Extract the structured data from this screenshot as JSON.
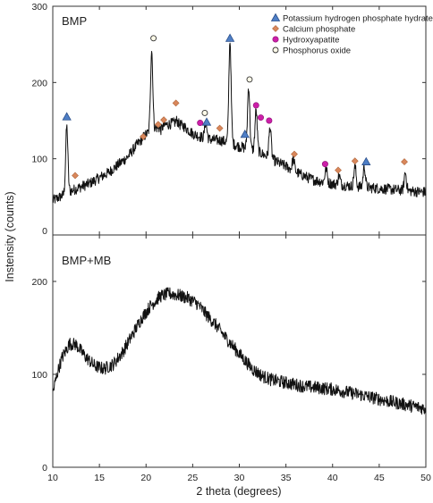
{
  "chart_data": {
    "type": "line",
    "xlabel": "2 theta (degrees)",
    "ylabel": "Instensity (counts)",
    "x_ticks": [
      "10",
      "15",
      "20",
      "25",
      "30",
      "35",
      "40",
      "45",
      "50"
    ],
    "xlim": [
      10,
      50
    ],
    "panels": [
      {
        "label": "BMP",
        "ylim": [
          0,
          300
        ],
        "y_ticks": [
          "0",
          "100",
          "200",
          "300"
        ],
        "series_color": "#111111",
        "baseline": [
          [
            10,
            45
          ],
          [
            12,
            58
          ],
          [
            14,
            68
          ],
          [
            16,
            82
          ],
          [
            18,
            102
          ],
          [
            19,
            118
          ],
          [
            20,
            132
          ],
          [
            21,
            140
          ],
          [
            22,
            144
          ],
          [
            23,
            147
          ],
          [
            24,
            143
          ],
          [
            25,
            133
          ],
          [
            26,
            128
          ],
          [
            27,
            125
          ],
          [
            28,
            124
          ],
          [
            29,
            121
          ],
          [
            30,
            116
          ],
          [
            31,
            113
          ],
          [
            32,
            109
          ],
          [
            33,
            103
          ],
          [
            34,
            96
          ],
          [
            35,
            90
          ],
          [
            36,
            83
          ],
          [
            37,
            77
          ],
          [
            38,
            72
          ],
          [
            40,
            67
          ],
          [
            42,
            64
          ],
          [
            44,
            62
          ],
          [
            46,
            60
          ],
          [
            48,
            58
          ],
          [
            50,
            56
          ]
        ],
        "peaks": [
          [
            11.5,
            142
          ],
          [
            20.6,
            243
          ],
          [
            21.6,
            138
          ],
          [
            23.3,
            150
          ],
          [
            26.4,
            148
          ],
          [
            29.0,
            255
          ],
          [
            31.0,
            195
          ],
          [
            31.8,
            163
          ],
          [
            33.3,
            142
          ],
          [
            35.8,
            100
          ],
          [
            39.3,
            88
          ],
          [
            40.7,
            78
          ],
          [
            42.4,
            90
          ],
          [
            43.4,
            90
          ],
          [
            47.8,
            82
          ]
        ],
        "markers": [
          {
            "kind": "khp",
            "x": 11.5,
            "y": 155
          },
          {
            "kind": "ca",
            "x": 12.4,
            "y": 78
          },
          {
            "kind": "ca",
            "x": 19.7,
            "y": 129
          },
          {
            "kind": "po",
            "x": 20.8,
            "y": 258
          },
          {
            "kind": "ca",
            "x": 21.3,
            "y": 145
          },
          {
            "kind": "ca",
            "x": 21.9,
            "y": 151
          },
          {
            "kind": "ca",
            "x": 23.2,
            "y": 173
          },
          {
            "kind": "hap",
            "x": 25.8,
            "y": 147
          },
          {
            "kind": "po",
            "x": 26.3,
            "y": 160
          },
          {
            "kind": "khp",
            "x": 26.5,
            "y": 148
          },
          {
            "kind": "ca",
            "x": 27.9,
            "y": 140
          },
          {
            "kind": "khp",
            "x": 29.0,
            "y": 258
          },
          {
            "kind": "khp",
            "x": 30.6,
            "y": 132
          },
          {
            "kind": "po",
            "x": 31.1,
            "y": 204
          },
          {
            "kind": "hap",
            "x": 31.8,
            "y": 170
          },
          {
            "kind": "hap",
            "x": 32.3,
            "y": 154
          },
          {
            "kind": "hap",
            "x": 33.2,
            "y": 150
          },
          {
            "kind": "ca",
            "x": 35.9,
            "y": 106
          },
          {
            "kind": "hap",
            "x": 39.2,
            "y": 93
          },
          {
            "kind": "ca",
            "x": 40.6,
            "y": 85
          },
          {
            "kind": "ca",
            "x": 42.4,
            "y": 97
          },
          {
            "kind": "khp",
            "x": 43.6,
            "y": 96
          },
          {
            "kind": "ca",
            "x": 47.7,
            "y": 96
          }
        ]
      },
      {
        "label": "BMP+MB",
        "ylim": [
          0,
          250
        ],
        "y_ticks": [
          "0",
          "100",
          "200"
        ],
        "series_color": "#111111",
        "baseline": [
          [
            10,
            80
          ],
          [
            10.5,
            102
          ],
          [
            11,
            118
          ],
          [
            11.8,
            133
          ],
          [
            12.5,
            132
          ],
          [
            13.5,
            119
          ],
          [
            14.5,
            109
          ],
          [
            15.5,
            106
          ],
          [
            16.5,
            111
          ],
          [
            17.5,
            124
          ],
          [
            18.5,
            142
          ],
          [
            19.5,
            160
          ],
          [
            20.5,
            174
          ],
          [
            21.5,
            184
          ],
          [
            22.5,
            187
          ],
          [
            23.5,
            185
          ],
          [
            24.5,
            182
          ],
          [
            25.5,
            176
          ],
          [
            26.5,
            164
          ],
          [
            27.5,
            153
          ],
          [
            28.5,
            140
          ],
          [
            29.5,
            128
          ],
          [
            30.5,
            116
          ],
          [
            31.5,
            105
          ],
          [
            32.5,
            98
          ],
          [
            33.5,
            94
          ],
          [
            35,
            91
          ],
          [
            37,
            87
          ],
          [
            40,
            84
          ],
          [
            43,
            78
          ],
          [
            46,
            71
          ],
          [
            48,
            67
          ],
          [
            50,
            63
          ]
        ],
        "peaks": [],
        "markers": []
      }
    ],
    "legend": {
      "placement": "top-right",
      "entries": [
        {
          "kind": "khp",
          "label": "Potassium hydrogen  phosphate hydrate",
          "color": "#4f7fc6"
        },
        {
          "kind": "ca",
          "label": "Calcium phosphate",
          "color": "#d9875b"
        },
        {
          "kind": "hap",
          "label": "Hydroxyapatite",
          "color": "#cc1fa8"
        },
        {
          "kind": "po",
          "label": "Phosphorus oxide",
          "color": "#fffbe8"
        }
      ]
    }
  }
}
